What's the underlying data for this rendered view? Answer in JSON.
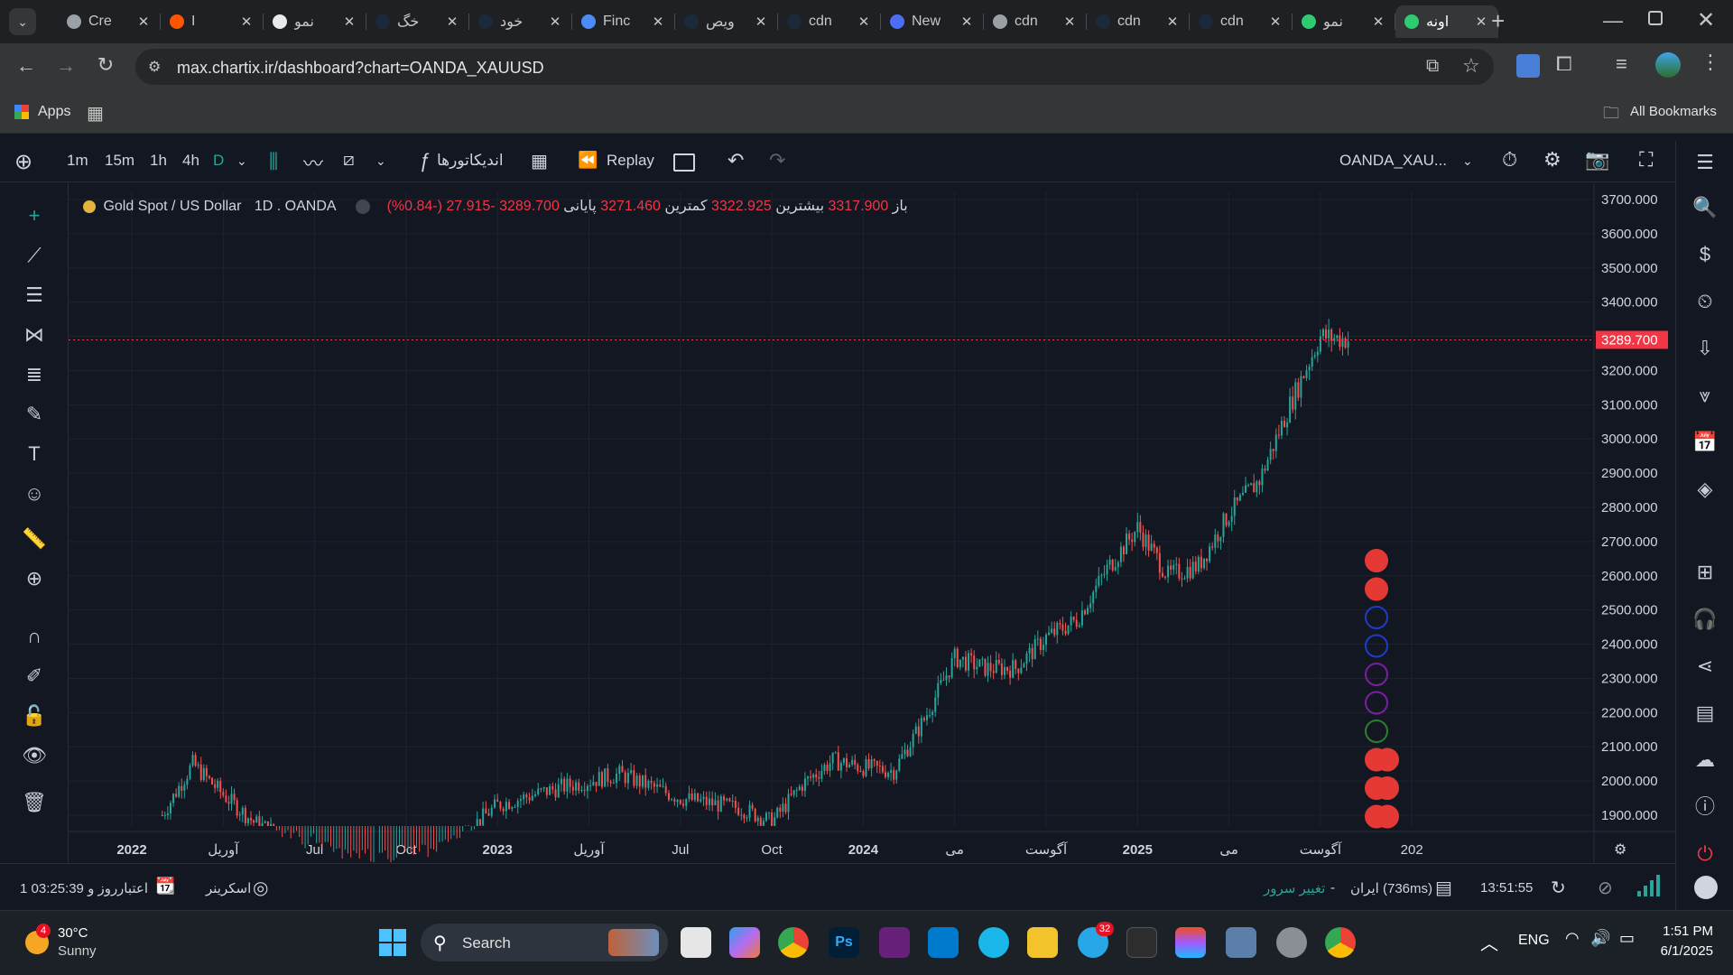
{
  "browser": {
    "tabs": [
      {
        "title": "Cre",
        "color": "#9aa0a6"
      },
      {
        "title": "I",
        "color": "#ff5500"
      },
      {
        "title": "نمو",
        "color": "#e8eaed"
      },
      {
        "title": "خگ",
        "color": "#1b2a3a"
      },
      {
        "title": "خود",
        "color": "#1b2a3a"
      },
      {
        "title": "Finc",
        "color": "#4c8bf5"
      },
      {
        "title": "ویص",
        "color": "#1b2a3a"
      },
      {
        "title": "cdn",
        "color": "#1b2a3a"
      },
      {
        "title": "New",
        "color": "#4c6ef5"
      },
      {
        "title": "cdn",
        "color": "#9aa0a6"
      },
      {
        "title": "cdn",
        "color": "#1b2a3a"
      },
      {
        "title": "cdn",
        "color": "#1b2a3a"
      },
      {
        "title": "نمو",
        "color": "#2ecc71"
      },
      {
        "title": "اونه",
        "color": "#2ecc71"
      }
    ],
    "url": "max.chartix.ir/dashboard?chart=OANDA_XAUUSD",
    "apps_label": "Apps",
    "all_bookmarks": "All Bookmarks"
  },
  "toolbar": {
    "intervals": [
      "1m",
      "15m",
      "1h",
      "4h",
      "D"
    ],
    "indicators_label": "اندیکاتورها",
    "replay_label": "Replay",
    "symbol": "OANDA_XAU..."
  },
  "legend": {
    "name": "Gold Spot / US Dollar",
    "interval": "1D",
    "exchange": "OANDA",
    "open_label": "باز",
    "open": "3317.900",
    "high_label": "بیشترین",
    "high": "3322.925",
    "low_label": "کمترین",
    "low": "3271.460",
    "close_label": "پایانی",
    "close": "3289.700",
    "change": "-27.915 (-0.84%)"
  },
  "chart_data": {
    "type": "candlestick",
    "price_ticks": [
      "3700.000",
      "3600.000",
      "3500.000",
      "3400.000",
      "3300.000",
      "3200.000",
      "3100.000",
      "3000.000",
      "2900.000",
      "2800.000",
      "2700.000",
      "2600.000",
      "2500.000",
      "2400.000",
      "2300.000",
      "2200.000",
      "2100.000",
      "2000.000",
      "1900.000"
    ],
    "time_ticks": [
      "2022",
      "آوریل",
      "Jul",
      "Oct",
      "2023",
      "آوریل",
      "Jul",
      "Oct",
      "2024",
      "می",
      "آگوست",
      "2025",
      "می",
      "آگوست",
      "202"
    ],
    "ylim": [
      1900,
      3700
    ],
    "last_price": "3289.700",
    "colors": {
      "up": "#26a69a",
      "down": "#ef5350",
      "last": "#f23645"
    },
    "series": [
      {
        "date": "2022-02",
        "value": 1900
      },
      {
        "date": "2022-03",
        "value": 2050
      },
      {
        "date": "2022-04",
        "value": 1960
      },
      {
        "date": "2022-05",
        "value": 1880
      },
      {
        "date": "2022-08",
        "value": 1760
      },
      {
        "date": "2022-11",
        "value": 1780
      },
      {
        "date": "2023-01",
        "value": 1930
      },
      {
        "date": "2023-03",
        "value": 1980
      },
      {
        "date": "2023-05",
        "value": 2020
      },
      {
        "date": "2023-07",
        "value": 1950
      },
      {
        "date": "2023-09",
        "value": 1920
      },
      {
        "date": "2023-10",
        "value": 1880
      },
      {
        "date": "2023-11",
        "value": 1990
      },
      {
        "date": "2023-12",
        "value": 2060
      },
      {
        "date": "2024-01",
        "value": 2040
      },
      {
        "date": "2024-02",
        "value": 2030
      },
      {
        "date": "2024-03",
        "value": 2180
      },
      {
        "date": "2024-04",
        "value": 2360
      },
      {
        "date": "2024-05",
        "value": 2330
      },
      {
        "date": "2024-06",
        "value": 2330
      },
      {
        "date": "2024-07",
        "value": 2420
      },
      {
        "date": "2024-08",
        "value": 2470
      },
      {
        "date": "2024-09",
        "value": 2620
      },
      {
        "date": "2024-10",
        "value": 2740
      },
      {
        "date": "2024-11",
        "value": 2600
      },
      {
        "date": "2024-12",
        "value": 2630
      },
      {
        "date": "2025-01",
        "value": 2780
      },
      {
        "date": "2025-02",
        "value": 2880
      },
      {
        "date": "2025-03",
        "value": 3100
      },
      {
        "date": "2025-04",
        "value": 3300
      },
      {
        "date": "2025-05",
        "value": 3290
      }
    ],
    "event_markers": [
      "red",
      "red",
      "blue",
      "blue",
      "purple",
      "purple",
      "green",
      "red",
      "red",
      "red"
    ]
  },
  "status_bar": {
    "session": "1 روز و 03:25:39",
    "credit_label": "اعتبار",
    "screener_label": "اسکرینر",
    "change_server": "تغییر سرور",
    "server": "ایران (736ms)",
    "time": "13:51:55"
  },
  "taskbar": {
    "temp": "30°C",
    "weather": "Sunny",
    "weather_badge": "4",
    "search_placeholder": "Search",
    "lang": "ENG",
    "clock_time": "1:51 PM",
    "clock_date": "6/1/2025",
    "telegram_badge": "32"
  }
}
